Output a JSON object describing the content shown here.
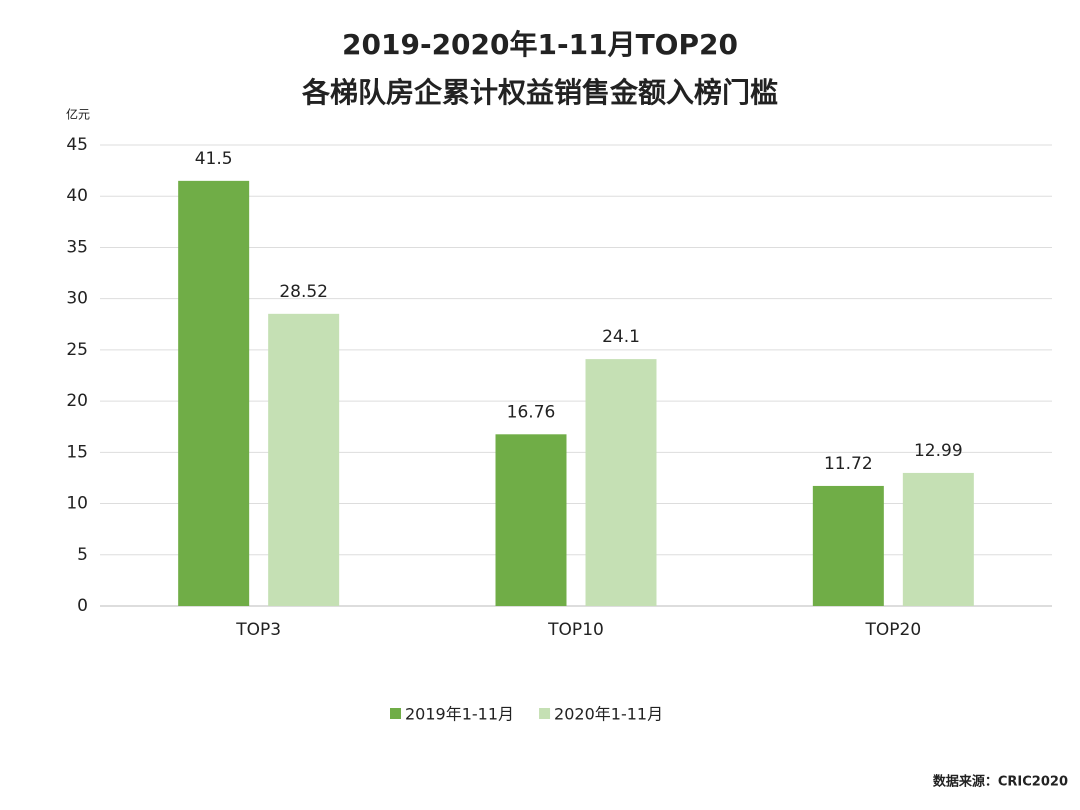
{
  "chart_data": {
    "type": "bar",
    "title": "2019-2020年1-11月TOP20",
    "subtitle": "各梯队房企累计权益销售金额入榜门槛",
    "y_label": "亿元",
    "source": "数据来源：CRIC2020",
    "categories": [
      "TOP3",
      "TOP10",
      "TOP20"
    ],
    "series": [
      {
        "name": "2019年1-11月",
        "color": "#70ad47",
        "values": [
          41.5,
          16.76,
          11.72
        ]
      },
      {
        "name": "2020年1-11月",
        "color": "#c5e0b4",
        "values": [
          28.52,
          24.1,
          12.99
        ]
      }
    ],
    "ylim": [
      0,
      45
    ],
    "yticks": [
      0,
      5,
      10,
      15,
      20,
      25,
      30,
      35,
      40,
      45
    ],
    "grid": true,
    "legend": "bottom"
  }
}
